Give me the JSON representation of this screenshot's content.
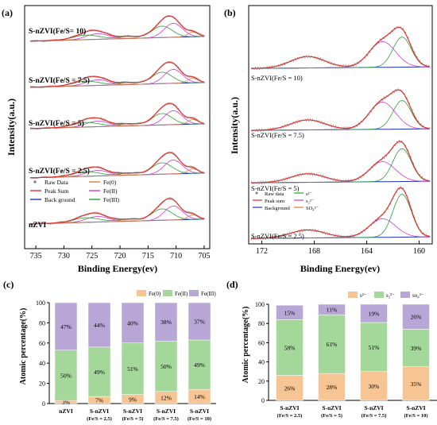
{
  "colors": {
    "raw": "#7a7a7a",
    "fe0": "#e07b2f",
    "fe2": "#d03ad0",
    "fe3": "#2e9e3a",
    "peaksum": "#e0302a",
    "background": "#2030c0",
    "bar_fe0": "#f7c493",
    "bar_fe2": "#a3d89a",
    "bar_fe3": "#b8a7d6"
  },
  "chart_data": [
    {
      "panel": "(a)",
      "type": "line",
      "xlabel": "Binding Energy(ev)",
      "ylabel": "Intensity(a.u.)",
      "xlim": [
        737,
        704
      ],
      "x_ticks": [
        "735",
        "730",
        "725",
        "720",
        "715",
        "710",
        "705"
      ],
      "x_tick_values": [
        735,
        730,
        725,
        720,
        715,
        710,
        705
      ],
      "traces": [
        "S-nZVI(Fe/S= 10)",
        "S-nZVI(Fe/S = 7.5)",
        "S-nZVI(Fe/S = 5)",
        "S-nZVI(Fe/S = 2.5)",
        "nZVI"
      ],
      "legend": [
        "Raw Data",
        "Fe(0)",
        "Peak Sum",
        "Fe(II)",
        "Back ground",
        "Fe(III)"
      ]
    },
    {
      "panel": "(b)",
      "type": "line",
      "xlabel": "Binding Energy(ev)",
      "ylabel": "Intensity(a.u.)",
      "xlim": [
        173,
        159
      ],
      "x_ticks": [
        "172",
        "168",
        "164",
        "160"
      ],
      "x_tick_values": [
        172,
        168,
        164,
        160
      ],
      "traces": [
        "S-nZVI(Fe/S = 10)",
        "S-nZVI(Fe/S = 7.5)",
        "S-nZVI(Fe/S = 5)",
        "S-nZVI(Fe/S = 2.5)"
      ],
      "legend": [
        "Raw data",
        "s²⁻",
        "Peak sum",
        "s₂²⁻",
        "Background",
        "SO₄²⁻"
      ]
    },
    {
      "panel": "(c)",
      "type": "bar",
      "stacked": true,
      "ylabel": "Atomic percentage(%)",
      "ylim": [
        0,
        100
      ],
      "y_ticks": [
        "0",
        "20",
        "40",
        "60",
        "80",
        "100"
      ],
      "legend": [
        "Fe(0)",
        "Fe(II)",
        "Fe(III)"
      ],
      "categories": [
        [
          "nZVI"
        ],
        [
          "S-nZVI",
          "(Fe/S = 2.5)"
        ],
        [
          "S-nZVI",
          "(Fe/S = 5)"
        ],
        [
          "S-nZVI",
          "(Fe/S = 7.5)"
        ],
        [
          "S-nZVI",
          "(Fe/S = 10)"
        ]
      ],
      "series": [
        {
          "name": "Fe(0)",
          "values": [
            3,
            7,
            9,
            12,
            14
          ],
          "labels": [
            "3%",
            "7%",
            "9%",
            "12%",
            "14%"
          ]
        },
        {
          "name": "Fe(II)",
          "values": [
            50,
            49,
            51,
            50,
            49
          ],
          "labels": [
            "50%",
            "49%",
            "51%",
            "50%",
            "49%"
          ]
        },
        {
          "name": "Fe(III)",
          "values": [
            47,
            44,
            40,
            38,
            37
          ],
          "labels": [
            "47%",
            "44%",
            "40%",
            "38%",
            "37%"
          ]
        }
      ]
    },
    {
      "panel": "(d)",
      "type": "bar",
      "stacked": true,
      "ylabel": "Atomic percentage(%)",
      "ylim": [
        0,
        100
      ],
      "y_ticks": [
        "0",
        "20",
        "40",
        "60",
        "80",
        "100"
      ],
      "legend": [
        "s²⁻",
        "s₂²⁻",
        "so₄²⁻"
      ],
      "categories": [
        [
          "S-nZVI",
          "(Fe/S = 2.5)"
        ],
        [
          "S-nZVI",
          "(Fe/S = 5)"
        ],
        [
          "S-nZVI",
          "(Fe/S = 7.5)"
        ],
        [
          "S-nZVI",
          "(Fe/S = 10)"
        ]
      ],
      "series": [
        {
          "name": "s²⁻",
          "values": [
            26,
            28,
            30,
            35
          ],
          "labels": [
            "26%",
            "28%",
            "30%",
            "35%"
          ]
        },
        {
          "name": "s₂²⁻",
          "values": [
            58,
            61,
            51,
            39
          ],
          "labels": [
            "58%",
            "61%",
            "51%",
            "39%"
          ]
        },
        {
          "name": "so₄²⁻",
          "values": [
            15,
            11,
            19,
            26
          ],
          "labels": [
            "15%",
            "11%",
            "19%",
            "26%"
          ]
        }
      ]
    }
  ]
}
